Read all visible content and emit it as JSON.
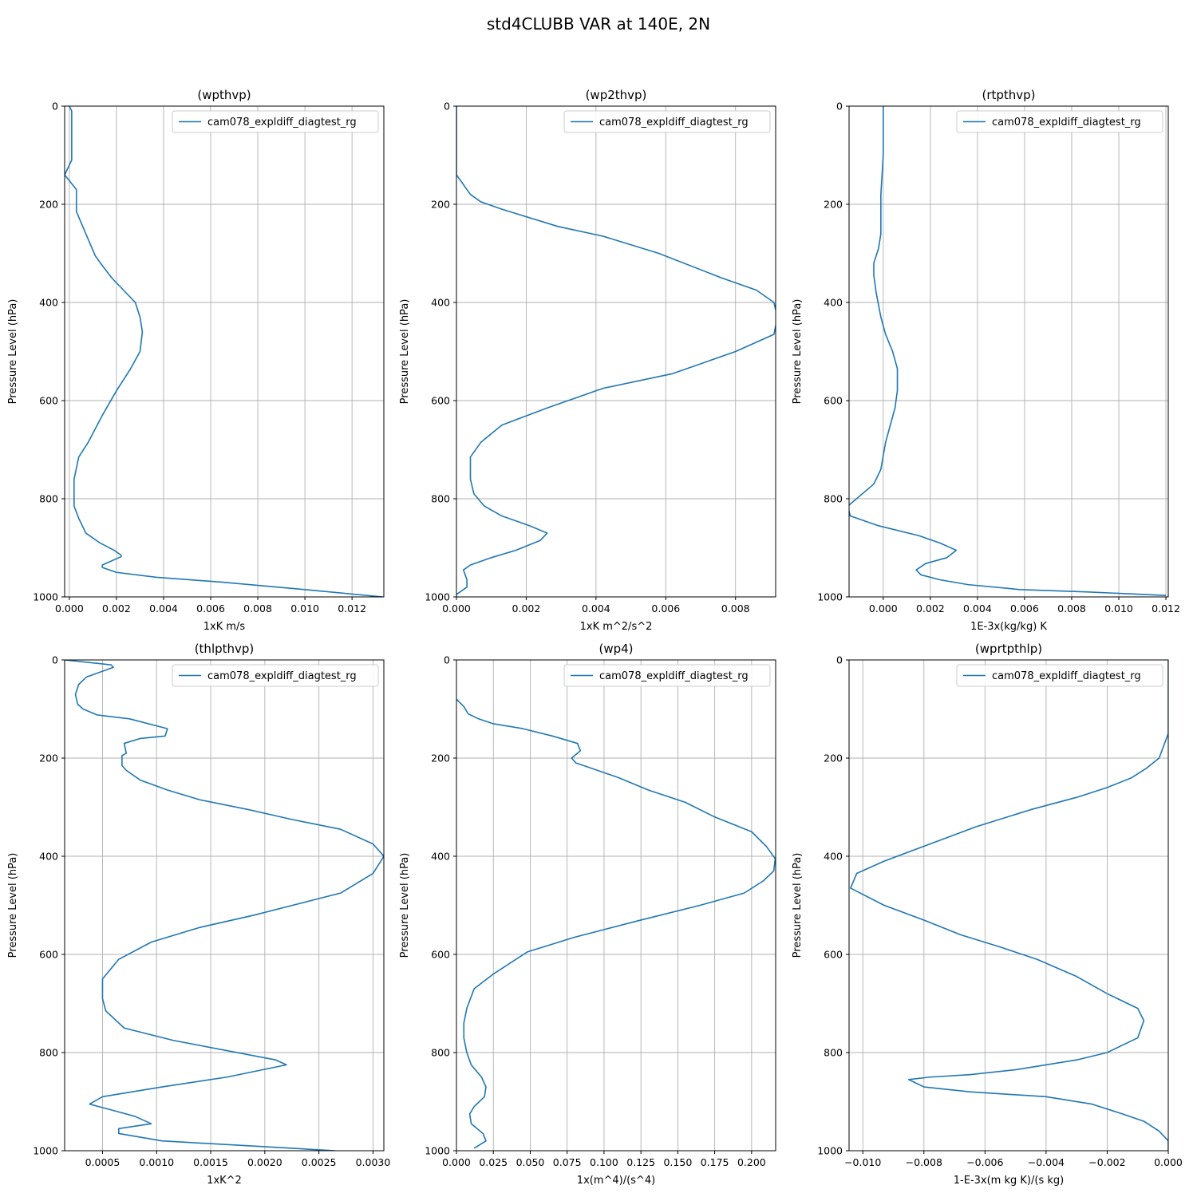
{
  "figure_title": "std4CLUBB VAR at 140E, 2N",
  "colors": {
    "line": "#1f77b4",
    "grid": "#b0b0b0",
    "axes": "#000000"
  },
  "chart_data": [
    {
      "type": "line",
      "title": "(wpthvp)",
      "xlabel": "1xK m/s",
      "ylabel": "Pressure Level (hPa)",
      "xlim": [
        -0.0002,
        0.01335
      ],
      "ylim": [
        1000,
        0
      ],
      "xticks": [
        0,
        0.002,
        0.004,
        0.006,
        0.008,
        0.01,
        0.012
      ],
      "xtick_labels": [
        "0.000",
        "0.002",
        "0.004",
        "0.006",
        "0.008",
        "0.010",
        "0.012"
      ],
      "yticks": [
        0,
        200,
        400,
        600,
        800,
        1000
      ],
      "ytick_labels": [
        "0",
        "200",
        "400",
        "600",
        "800",
        "1000"
      ],
      "legend": "cam078_expldiff_diagtest_rg",
      "series": [
        {
          "name": "cam078_expldiff_diagtest_rg",
          "x": [
            0.0,
            0.0001,
            0.0001,
            0.0001,
            -0.0002,
            0.0003,
            0.0003,
            0.0003,
            0.0007,
            0.0011,
            0.0014,
            0.0018,
            0.0023,
            0.0028,
            0.003,
            0.0031,
            0.003,
            0.0026,
            0.002,
            0.0014,
            0.0008,
            0.0004,
            0.0002,
            0.0002,
            0.0002,
            0.0004,
            0.0007,
            0.0013,
            0.0019,
            0.0022,
            0.0022,
            0.0014,
            0.0014,
            0.002,
            0.0037,
            0.0065,
            0.01,
            0.0133
          ],
          "y": [
            0,
            10,
            70,
            110,
            140,
            170,
            200,
            215,
            260,
            305,
            325,
            350,
            375,
            400,
            430,
            460,
            500,
            535,
            580,
            630,
            685,
            715,
            760,
            790,
            815,
            840,
            870,
            890,
            905,
            915,
            918,
            935,
            940,
            950,
            960,
            970,
            985,
            1000
          ]
        }
      ]
    },
    {
      "type": "line",
      "title": "(wp2thvp)",
      "xlabel": "1xK m^2/s^2",
      "ylabel": "Pressure Level (hPa)",
      "xlim": [
        0,
        0.00915
      ],
      "ylim": [
        1000,
        0
      ],
      "xticks": [
        0,
        0.002,
        0.004,
        0.006,
        0.008
      ],
      "xtick_labels": [
        "0.000",
        "0.002",
        "0.004",
        "0.006",
        "0.008"
      ],
      "yticks": [
        0,
        200,
        400,
        600,
        800,
        1000
      ],
      "ytick_labels": [
        "0",
        "200",
        "400",
        "600",
        "800",
        "1000"
      ],
      "legend": "cam078_expldiff_diagtest_rg",
      "series": [
        {
          "name": "cam078_expldiff_diagtest_rg",
          "x": [
            0.0,
            0.0,
            0.0004,
            0.0007,
            0.0013,
            0.0029,
            0.0042,
            0.0058,
            0.0076,
            0.0086,
            0.0091,
            0.0092,
            0.0091,
            0.008,
            0.0062,
            0.0042,
            0.0026,
            0.0013,
            0.0007,
            0.0004,
            0.0004,
            0.0005,
            0.0008,
            0.0013,
            0.0021,
            0.0026,
            0.0024,
            0.0017,
            0.001,
            0.0004,
            0.0002,
            0.0003,
            0.0003,
            0.0
          ],
          "y": [
            0,
            140,
            180,
            195,
            210,
            245,
            265,
            300,
            350,
            375,
            400,
            430,
            465,
            500,
            545,
            575,
            615,
            650,
            685,
            715,
            760,
            790,
            815,
            835,
            855,
            870,
            885,
            905,
            920,
            935,
            945,
            965,
            980,
            995
          ]
        }
      ]
    },
    {
      "type": "line",
      "title": "(rtpthvp)",
      "xlabel": "1E-3x(kg/kg) K",
      "ylabel": "Pressure Level (hPa)",
      "xlim": [
        -0.00145,
        0.0121
      ],
      "ylim": [
        1000,
        0
      ],
      "xticks": [
        0,
        0.002,
        0.004,
        0.006,
        0.008,
        0.01,
        0.012
      ],
      "xtick_labels": [
        "0.000",
        "0.002",
        "0.004",
        "0.006",
        "0.008",
        "0.010",
        "0.012"
      ],
      "yticks": [
        0,
        200,
        400,
        600,
        800,
        1000
      ],
      "ytick_labels": [
        "0",
        "200",
        "400",
        "600",
        "800",
        "1000"
      ],
      "legend": "cam078_expldiff_diagtest_rg",
      "series": [
        {
          "name": "cam078_expldiff_diagtest_rg",
          "x": [
            0.0,
            0.0,
            -0.0001,
            -0.0001,
            -0.0002,
            -0.0004,
            -0.0004,
            -0.0003,
            -0.0001,
            0.0001,
            0.0004,
            0.0006,
            0.0006,
            0.0005,
            0.0003,
            0.0001,
            -0.0001,
            -0.0004,
            -0.0015,
            -0.0014,
            -0.0002,
            0.0015,
            0.0024,
            0.0031,
            0.0027,
            0.0018,
            0.0014,
            0.0016,
            0.0024,
            0.0036,
            0.0058,
            0.0087,
            0.012
          ],
          "y": [
            0,
            100,
            180,
            260,
            290,
            320,
            345,
            380,
            430,
            465,
            500,
            535,
            580,
            615,
            650,
            685,
            740,
            770,
            815,
            835,
            855,
            875,
            890,
            905,
            920,
            932,
            945,
            955,
            965,
            975,
            985,
            990,
            997
          ]
        }
      ]
    },
    {
      "type": "line",
      "title": "(thlpthvp)",
      "xlabel": "1xK^2",
      "ylabel": "Pressure Level (hPa)",
      "xlim": [
        0.00015,
        0.0031
      ],
      "ylim": [
        1000,
        0
      ],
      "xticks": [
        0.0005,
        0.001,
        0.0015,
        0.002,
        0.0025,
        0.003
      ],
      "xtick_labels": [
        "0.0005",
        "0.0010",
        "0.0015",
        "0.0020",
        "0.0025",
        "0.0030"
      ],
      "yticks": [
        0,
        200,
        400,
        600,
        800,
        1000
      ],
      "ytick_labels": [
        "0",
        "200",
        "400",
        "600",
        "800",
        "1000"
      ],
      "legend": "cam078_expldiff_diagtest_rg",
      "series": [
        {
          "name": "cam078_expldiff_diagtest_rg",
          "x": [
            0.00015,
            0.00058,
            0.0006,
            0.00035,
            0.00028,
            0.00025,
            0.00027,
            0.00032,
            0.00045,
            0.00075,
            0.0011,
            0.00108,
            0.00085,
            0.0007,
            0.00072,
            0.00068,
            0.00068,
            0.00072,
            0.00085,
            0.0011,
            0.0014,
            0.00185,
            0.00225,
            0.0027,
            0.003,
            0.0031,
            0.003,
            0.0027,
            0.0019,
            0.0014,
            0.00095,
            0.00065,
            0.0005,
            0.0005,
            0.00053,
            0.0007,
            0.00115,
            0.0021,
            0.0022,
            0.00165,
            0.00105,
            0.0005,
            0.00038,
            0.00055,
            0.0008,
            0.00095,
            0.00065,
            0.00065,
            0.00105,
            0.00265
          ],
          "y": [
            0,
            10,
            15,
            35,
            50,
            70,
            90,
            100,
            112,
            120,
            140,
            155,
            160,
            170,
            190,
            195,
            215,
            225,
            245,
            265,
            285,
            305,
            325,
            345,
            375,
            400,
            435,
            475,
            520,
            545,
            575,
            610,
            650,
            690,
            715,
            750,
            775,
            815,
            825,
            850,
            870,
            890,
            905,
            915,
            930,
            945,
            955,
            965,
            980,
            1000
          ]
        }
      ]
    },
    {
      "type": "line",
      "title": "(wp4)",
      "xlabel": "1x(m^4)/(s^4)",
      "ylabel": "Pressure Level (hPa)",
      "xlim": [
        0,
        0.2163
      ],
      "ylim": [
        1000,
        0
      ],
      "xticks": [
        0,
        0.025,
        0.05,
        0.075,
        0.1,
        0.125,
        0.15,
        0.175,
        0.2
      ],
      "xtick_labels": [
        "0.000",
        "0.025",
        "0.050",
        "0.075",
        "0.100",
        "0.125",
        "0.150",
        "0.175",
        "0.200"
      ],
      "yticks": [
        0,
        200,
        400,
        600,
        800,
        1000
      ],
      "ytick_labels": [
        "0",
        "200",
        "400",
        "600",
        "800",
        "1000"
      ],
      "legend": "cam078_expldiff_diagtest_rg",
      "series": [
        {
          "name": "cam078_expldiff_diagtest_rg",
          "x": [
            0.0,
            0.005,
            0.008,
            0.015,
            0.025,
            0.045,
            0.065,
            0.082,
            0.084,
            0.078,
            0.081,
            0.086,
            0.11,
            0.13,
            0.155,
            0.175,
            0.2,
            0.21,
            0.216,
            0.215,
            0.208,
            0.195,
            0.165,
            0.125,
            0.08,
            0.048,
            0.025,
            0.012,
            0.007,
            0.005,
            0.005,
            0.007,
            0.01,
            0.017,
            0.02,
            0.019,
            0.012,
            0.009,
            0.01,
            0.018,
            0.02,
            0.012
          ],
          "y": [
            80,
            95,
            110,
            120,
            130,
            140,
            155,
            170,
            185,
            200,
            210,
            215,
            240,
            265,
            290,
            320,
            350,
            380,
            405,
            430,
            450,
            475,
            500,
            530,
            565,
            595,
            640,
            670,
            710,
            740,
            770,
            800,
            825,
            850,
            870,
            890,
            910,
            925,
            945,
            965,
            980,
            995
          ]
        }
      ]
    },
    {
      "type": "line",
      "title": "(wprtpthlp)",
      "xlabel": "1-E-3x(m kg K)/(s kg)",
      "ylabel": "Pressure Level (hPa)",
      "xlim": [
        -0.01045,
        0
      ],
      "ylim": [
        1000,
        0
      ],
      "xticks": [
        -0.01,
        -0.008,
        -0.006,
        -0.004,
        -0.002,
        0
      ],
      "xtick_labels": [
        "−0.010",
        "−0.008",
        "−0.006",
        "−0.004",
        "−0.002",
        "0.000"
      ],
      "yticks": [
        0,
        200,
        400,
        600,
        800,
        1000
      ],
      "ytick_labels": [
        "0",
        "200",
        "400",
        "600",
        "800",
        "1000"
      ],
      "legend": "cam078_expldiff_diagtest_rg",
      "series": [
        {
          "name": "cam078_expldiff_diagtest_rg",
          "x": [
            0.0,
            0.0,
            -0.0003,
            -0.0007,
            -0.0012,
            -0.002,
            -0.003,
            -0.0045,
            -0.0063,
            -0.0078,
            -0.0093,
            -0.0102,
            -0.0104,
            -0.0093,
            -0.008,
            -0.0068,
            -0.0055,
            -0.0043,
            -0.003,
            -0.002,
            -0.001,
            -0.0008,
            -0.001,
            -0.002,
            -0.003,
            -0.005,
            -0.0065,
            -0.0078,
            -0.0085,
            -0.008,
            -0.0065,
            -0.004,
            -0.0025,
            -0.0015,
            -0.0008,
            -0.0003,
            0.0,
            0.0
          ],
          "y": [
            0,
            150,
            200,
            220,
            240,
            260,
            280,
            305,
            340,
            375,
            410,
            435,
            465,
            500,
            530,
            560,
            585,
            610,
            645,
            680,
            710,
            735,
            770,
            800,
            815,
            835,
            845,
            850,
            855,
            870,
            880,
            890,
            905,
            925,
            940,
            960,
            980,
            1000
          ]
        }
      ]
    }
  ]
}
